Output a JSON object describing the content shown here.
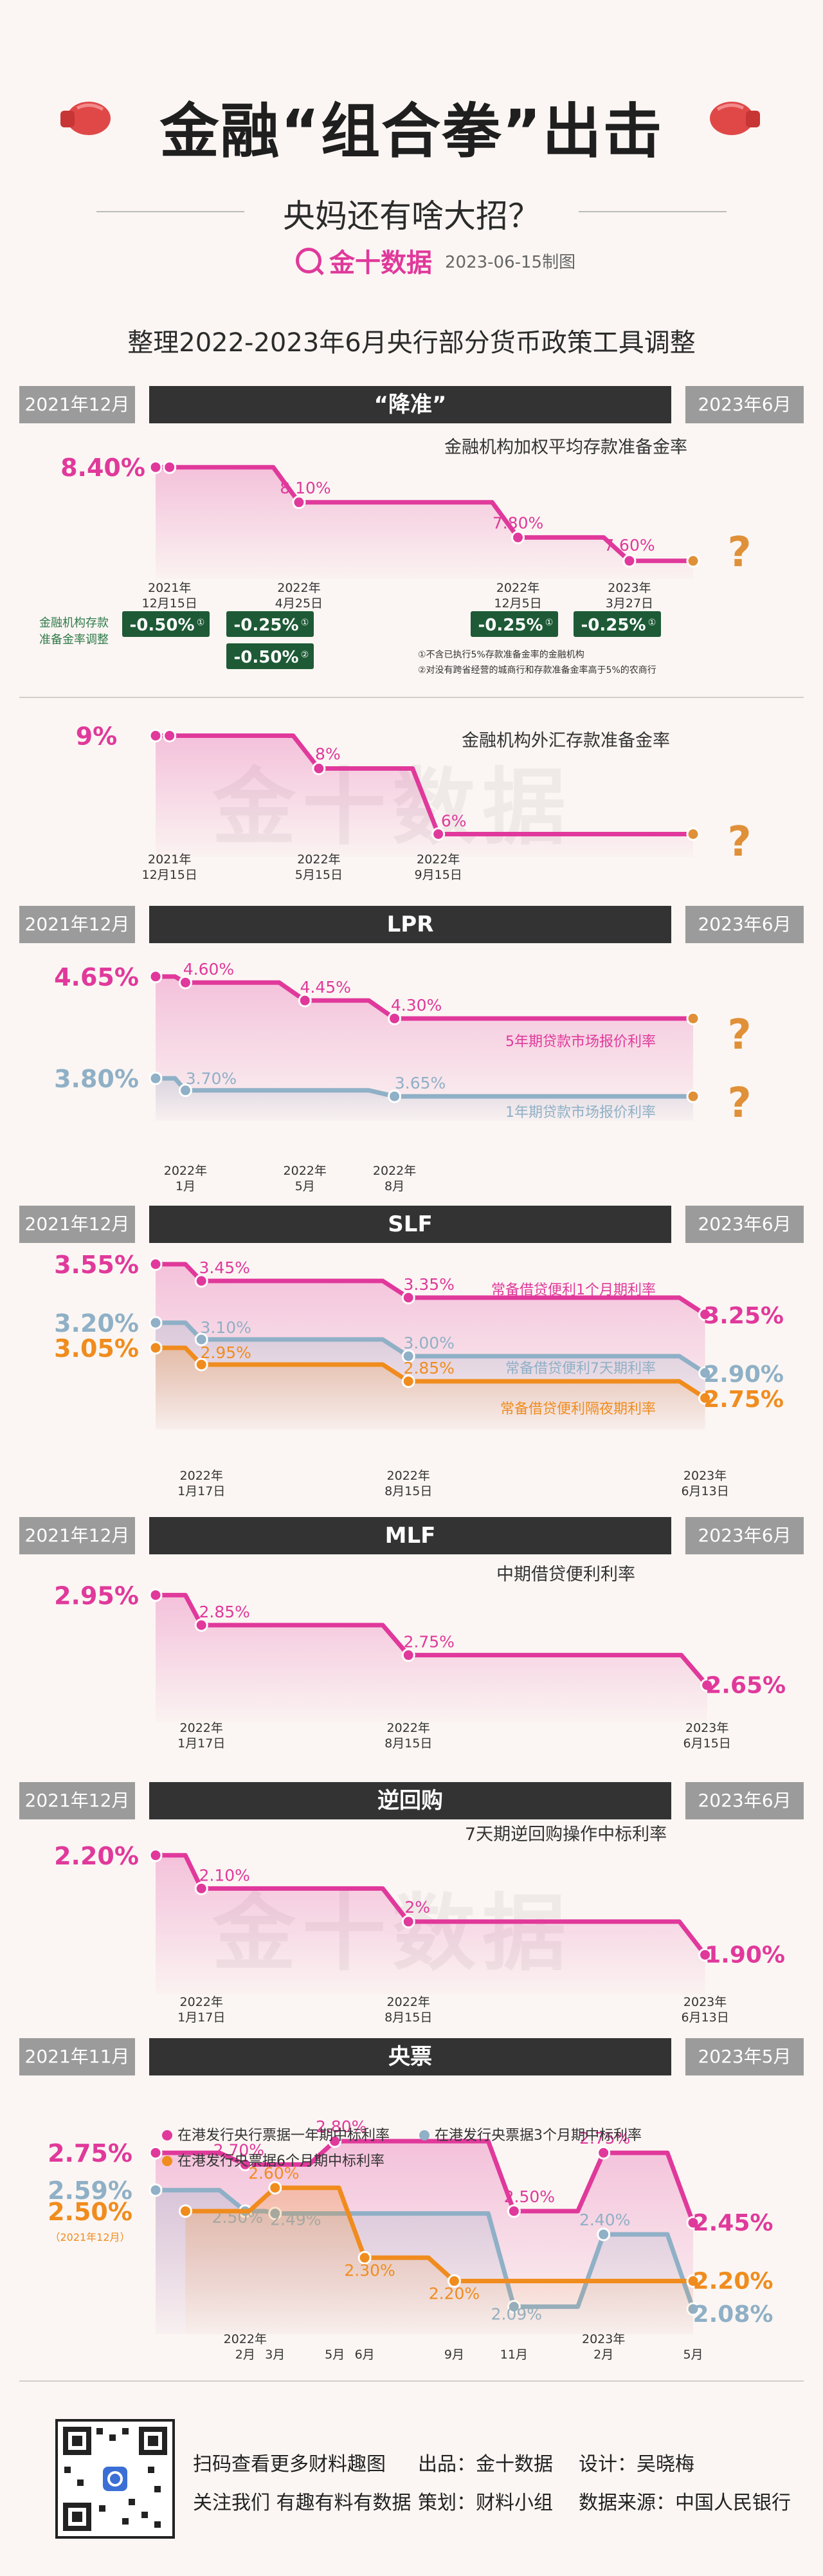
{
  "header": {
    "title": "金融“组合拳”出击",
    "subtitle": "央妈还有啥大招？",
    "brand": "金十数据",
    "date": "2023-06-15制图",
    "heading": "整理2022-2023年6月央行部分货币政策工具调整"
  },
  "sections": [
    {
      "left": "2021年12月",
      "name": "“降准”",
      "right": "2023年6月"
    },
    {
      "left": "2021年12月",
      "name": "LPR",
      "right": "2023年6月"
    },
    {
      "left": "2021年12月",
      "name": "SLF",
      "right": "2023年6月"
    },
    {
      "left": "2021年12月",
      "name": "MLF",
      "right": "2023年6月"
    },
    {
      "left": "2021年12月",
      "name": "逆回购",
      "right": "2023年6月"
    },
    {
      "left": "2021年11月",
      "name": "央票",
      "right": "2023年5月"
    }
  ],
  "rrr_note": {
    "side_label": [
      "金融机构存款",
      "准备金率调整"
    ],
    "badges": [
      {
        "text": "-0.50%",
        "sup": "①"
      },
      {
        "text": "-0.25%",
        "sup": "①"
      },
      {
        "text": "-0.50%",
        "sup": "②"
      },
      {
        "text": "-0.25%",
        "sup": "①"
      },
      {
        "text": "-0.25%",
        "sup": "①"
      }
    ],
    "footnotes": [
      "①不含已执行5%存款准备金率的金融机构",
      "②对没有跨省经营的城商行和存款准备金率高于5%的农商行"
    ]
  },
  "watermark": "金十数据",
  "footer": {
    "line1": [
      "扫码查看更多财料趣图",
      "出品：金十数据",
      "设计：吴晓梅"
    ],
    "line2": [
      "关注我们 有趣有料有数据",
      "策划：财料小组",
      "数据来源：中国人民银行"
    ]
  },
  "chart_data": [
    {
      "id": "rrr",
      "type": "line",
      "title": "金融机构加权平均存款准备金率",
      "ylim": [
        7.5,
        8.5
      ],
      "x_domain": [
        "2021-12",
        "2023-06"
      ],
      "series": [
        {
          "color": "#e0399b",
          "first_label": "8.40%",
          "points": [
            [
              "2021-12",
              8.4
            ],
            [
              "2021-12-15",
              8.4
            ],
            [
              "2022-04-25",
              8.1
            ],
            [
              "2022-12-05",
              7.8
            ],
            [
              "2023-03-27",
              7.6
            ],
            [
              "2023-06",
              7.6
            ]
          ],
          "labels": [
            "",
            "",
            "8.10%",
            "7.80%",
            "7.60%",
            ""
          ],
          "end_question": "?"
        }
      ],
      "date_labels": [
        [
          "2021-12-15",
          "2021年",
          "12月15日"
        ],
        [
          "2022-04-25",
          "2022年",
          "4月25日"
        ],
        [
          "2022-12-05",
          "2022年",
          "12月5日"
        ],
        [
          "2023-03-27",
          "2023年",
          "3月27日"
        ]
      ]
    },
    {
      "id": "fx",
      "type": "line",
      "title": "金融机构外汇存款准备金率",
      "ylim": [
        5.5,
        9.5
      ],
      "x_domain": [
        "2021-12",
        "2023-06"
      ],
      "series": [
        {
          "color": "#e0399b",
          "first_label": "9%",
          "points": [
            [
              "2021-12",
              9
            ],
            [
              "2021-12-15",
              9
            ],
            [
              "2022-05-15",
              8
            ],
            [
              "2022-09-15",
              6
            ],
            [
              "2023-06",
              6
            ]
          ],
          "labels": [
            "",
            "",
            "8%",
            "6%",
            ""
          ],
          "end_question": "?"
        }
      ],
      "date_labels": [
        [
          "2021-12-15",
          "2021年",
          "12月15日"
        ],
        [
          "2022-05-15",
          "2022年",
          "5月15日"
        ],
        [
          "2022-09-15",
          "2022年",
          "9月15日"
        ]
      ]
    },
    {
      "id": "lpr",
      "type": "line",
      "ylim": [
        3.5,
        4.8
      ],
      "x_domain": [
        "2021-12",
        "2023-06"
      ],
      "series": [
        {
          "name": "5年期贷款市场报价利率",
          "color": "#e0399b",
          "first_label": "4.65%",
          "points": [
            [
              "2021-12",
              4.65
            ],
            [
              "2022-01",
              4.6
            ],
            [
              "2022-05",
              4.45
            ],
            [
              "2022-08",
              4.3
            ],
            [
              "2023-06",
              4.3
            ]
          ],
          "labels": [
            "",
            "4.60%",
            "4.45%",
            "4.30%",
            ""
          ],
          "end_question": "?"
        },
        {
          "name": "1年期贷款市场报价利率",
          "color": "#8fb0c6",
          "first_label": "3.80%",
          "points": [
            [
              "2021-12",
              3.8
            ],
            [
              "2022-01",
              3.7
            ],
            [
              "2022-08",
              3.65
            ],
            [
              "2023-06",
              3.65
            ]
          ],
          "labels": [
            "",
            "3.70%",
            "3.65%",
            ""
          ],
          "end_question": "?"
        }
      ],
      "date_labels": [
        [
          "2022-01",
          "2022年",
          "1月"
        ],
        [
          "2022-05",
          "2022年",
          "5月"
        ],
        [
          "2022-08",
          "2022年",
          "8月"
        ]
      ]
    },
    {
      "id": "slf",
      "type": "line",
      "ylim": [
        2.6,
        3.6
      ],
      "x_domain": [
        "2021-12",
        "2023-06"
      ],
      "series": [
        {
          "name": "常备借贷便利1个月期利率",
          "color": "#e0399b",
          "first_label": "3.55%",
          "points": [
            [
              "2021-12",
              3.55
            ],
            [
              "2022-01-17",
              3.45
            ],
            [
              "2022-08-15",
              3.35
            ],
            [
              "2023-06-13",
              3.25
            ]
          ],
          "labels": [
            "",
            "3.45%",
            "3.35%",
            "3.25%"
          ]
        },
        {
          "name": "常备借贷便利7天期利率",
          "color": "#8fb0c6",
          "first_label": "3.20%",
          "points": [
            [
              "2021-12",
              3.2
            ],
            [
              "2022-01-17",
              3.1
            ],
            [
              "2022-08-15",
              3.0
            ],
            [
              "2023-06-13",
              2.9
            ]
          ],
          "labels": [
            "",
            "3.10%",
            "3.00%",
            "2.90%"
          ]
        },
        {
          "name": "常备借贷便利隔夜期利率",
          "color": "#f08c1e",
          "first_label": "3.05%",
          "points": [
            [
              "2021-12",
              3.05
            ],
            [
              "2022-01-17",
              2.95
            ],
            [
              "2022-08-15",
              2.85
            ],
            [
              "2023-06-13",
              2.75
            ]
          ],
          "labels": [
            "",
            "2.95%",
            "2.85%",
            "2.75%"
          ]
        }
      ],
      "date_labels": [
        [
          "2022-01-17",
          "2022年",
          "1月17日"
        ],
        [
          "2022-08-15",
          "2022年",
          "8月15日"
        ],
        [
          "2023-06-13",
          "2023年",
          "6月13日"
        ]
      ]
    },
    {
      "id": "mlf",
      "type": "line",
      "title": "中期借贷便利利率",
      "ylim": [
        2.55,
        3.0
      ],
      "x_domain": [
        "2021-12",
        "2023-06"
      ],
      "series": [
        {
          "color": "#e0399b",
          "first_label": "2.95%",
          "points": [
            [
              "2021-12",
              2.95
            ],
            [
              "2022-01-17",
              2.85
            ],
            [
              "2022-08-15",
              2.75
            ],
            [
              "2023-06-15",
              2.65
            ]
          ],
          "labels": [
            "",
            "2.85%",
            "2.75%",
            "2.65%"
          ]
        }
      ],
      "date_labels": [
        [
          "2022-01-17",
          "2022年",
          "1月17日"
        ],
        [
          "2022-08-15",
          "2022年",
          "8月15日"
        ],
        [
          "2023-06-15",
          "2023年",
          "6月15日"
        ]
      ]
    },
    {
      "id": "rr",
      "type": "line",
      "title": "7天期逆回购操作中标利率",
      "ylim": [
        1.8,
        2.25
      ],
      "x_domain": [
        "2021-12",
        "2023-06"
      ],
      "series": [
        {
          "color": "#e0399b",
          "first_label": "2.20%",
          "points": [
            [
              "2021-12",
              2.2
            ],
            [
              "2022-01-17",
              2.1
            ],
            [
              "2022-08-15",
              2.0
            ],
            [
              "2023-06-13",
              1.9
            ]
          ],
          "labels": [
            "",
            "2.10%",
            "2%",
            "1.90%"
          ]
        }
      ],
      "date_labels": [
        [
          "2022-01-17",
          "2022年",
          "1月17日"
        ],
        [
          "2022-08-15",
          "2022年",
          "8月15日"
        ],
        [
          "2023-06-13",
          "2023年",
          "6月13日"
        ]
      ]
    },
    {
      "id": "cbb",
      "type": "line",
      "ylim": [
        2.0,
        2.85
      ],
      "x_domain": [
        "2021-11",
        "2023-05"
      ],
      "series": [
        {
          "name": "在港发行央行票据一年期中标利率",
          "color": "#e0399b",
          "first_label": "2.75%",
          "points": [
            [
              "2021-11",
              2.75
            ],
            [
              "2022-02",
              2.7
            ],
            [
              "2022-05",
              2.8
            ],
            [
              "2022-11",
              2.5
            ],
            [
              "2023-02",
              2.75
            ],
            [
              "2023-05",
              2.45
            ]
          ],
          "labels": [
            "",
            "2.70%",
            "2.80%",
            "2.50%",
            "2.75%",
            "2.45%"
          ]
        },
        {
          "name": "在港发行央票据3个月期中标利率",
          "color": "#8fb0c6",
          "first_label": "2.59%",
          "points": [
            [
              "2021-11",
              2.59
            ],
            [
              "2022-02",
              2.5
            ],
            [
              "2022-03",
              2.49
            ],
            [
              "2022-11",
              2.09
            ],
            [
              "2023-02",
              2.4
            ],
            [
              "2023-05",
              2.08
            ]
          ],
          "labels": [
            "",
            "2.50%",
            "2.49%",
            "2.09%",
            "2.40%",
            "2.08%"
          ]
        },
        {
          "name": "在港发行央票据6个月期中标利率",
          "color": "#f08c1e",
          "first_label": "2.50%",
          "first_sub": "（2021年12月）",
          "points": [
            [
              "2021-12",
              2.5
            ],
            [
              "2022-03",
              2.6
            ],
            [
              "2022-06",
              2.3
            ],
            [
              "2022-09",
              2.2
            ],
            [
              "2023-05",
              2.2
            ]
          ],
          "labels": [
            "",
            "2.60%",
            "2.30%",
            "2.20%",
            "2.20%"
          ]
        }
      ],
      "date_labels": [
        [
          "2022-02",
          "2022年",
          "2月"
        ],
        [
          "2022-03",
          "",
          "3月"
        ],
        [
          "2022-05",
          "",
          "5月"
        ],
        [
          "2022-06",
          "",
          "6月"
        ],
        [
          "2022-09",
          "",
          "9月"
        ],
        [
          "2022-11",
          "",
          "11月"
        ],
        [
          "2023-02",
          "2023年",
          "2月"
        ],
        [
          "2023-05",
          "",
          "5月"
        ]
      ]
    }
  ]
}
